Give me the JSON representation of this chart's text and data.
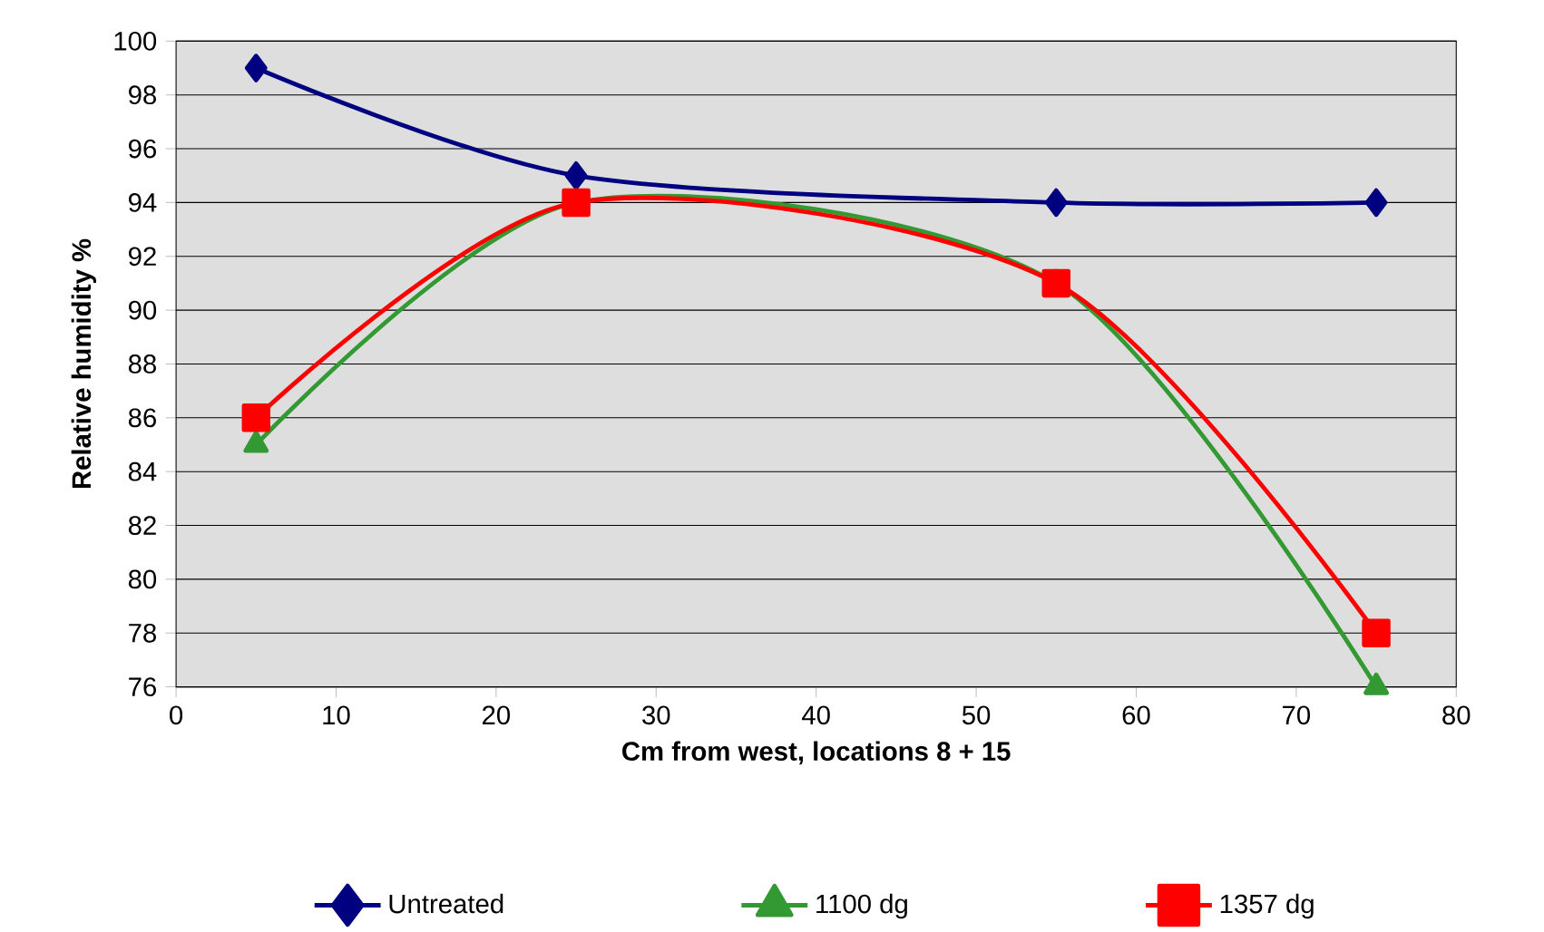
{
  "chart_data": {
    "type": "line",
    "xlabel": "Cm from west, locations 8 + 15",
    "ylabel": "Relative humidity %",
    "x": [
      5,
      25,
      55,
      75
    ],
    "series": [
      {
        "name": "Untreated",
        "color": "#000080",
        "values": [
          99,
          95,
          94,
          94
        ],
        "marker": "diamond"
      },
      {
        "name": "1100 dg",
        "color": "#339933",
        "values": [
          85,
          94,
          91,
          76
        ],
        "marker": "triangle"
      },
      {
        "name": "1357 dg",
        "color": "#ff0000",
        "values": [
          86,
          94,
          91,
          78
        ],
        "marker": "square"
      }
    ],
    "xlim": [
      0,
      80
    ],
    "xticks": [
      0,
      10,
      20,
      30,
      40,
      50,
      60,
      70,
      80
    ],
    "ylim": [
      76,
      100
    ],
    "yticks": [
      76,
      78,
      80,
      82,
      84,
      86,
      88,
      90,
      92,
      94,
      96,
      98,
      100
    ],
    "grid": "y",
    "legend": "bottom",
    "line_style": "solid"
  }
}
